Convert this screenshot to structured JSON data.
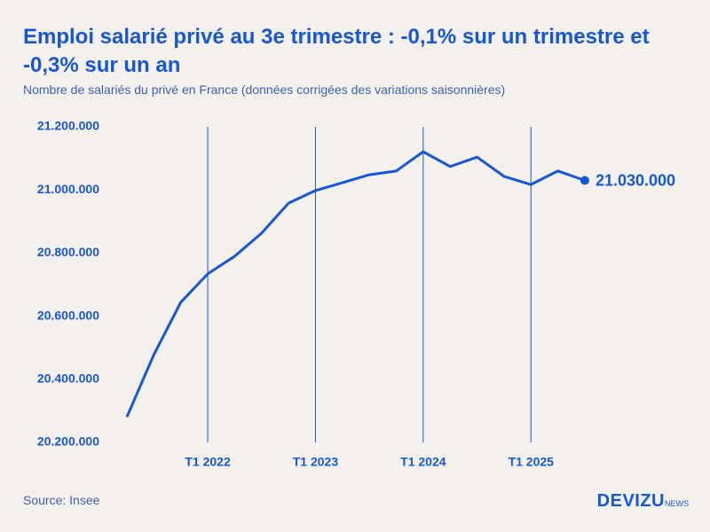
{
  "chart_data": {
    "type": "line",
    "title": "Emploi salarié privé au 3e trimestre : -0,1% sur un trimestre et -0,3% sur un an",
    "subtitle": "Nombre de salariés du privé en France (données corrigées des variations saisonnières)",
    "source": "Source: Insee",
    "brand": "DEVIZU",
    "brand_suffix": "NEWS",
    "categories": [
      null,
      null,
      null,
      "T1 2022",
      null,
      null,
      null,
      "T1 2023",
      null,
      null,
      null,
      "T1 2024",
      null,
      null,
      null,
      "T1 2025",
      null,
      null
    ],
    "series": [
      {
        "name": "Nombre de salariés du privé",
        "color": "#1656dc",
        "values": [
          20281000,
          20478000,
          20644000,
          20734000,
          20790000,
          20863000,
          20958000,
          20998000,
          21023000,
          21048000,
          21060000,
          21121000,
          21074000,
          21104000,
          21043000,
          21017000,
          21060000,
          21030000
        ],
        "value_labels": [
          null,
          null,
          null,
          null,
          null,
          null,
          null,
          null,
          null,
          null,
          null,
          null,
          null,
          null,
          null,
          null,
          null,
          "21.030.000"
        ]
      }
    ],
    "ylim": [
      20200000,
      21200000
    ],
    "yticks": [
      {
        "value": 20200000,
        "label": "20.200.000"
      },
      {
        "value": 20400000,
        "label": "20.400.000"
      },
      {
        "value": 20600000,
        "label": "20.600.000"
      },
      {
        "value": 20800000,
        "label": "20.800.000"
      },
      {
        "value": 21000000,
        "label": "21.000.000"
      },
      {
        "value": 21200000,
        "label": "21.200.000"
      }
    ],
    "x_grid": true
  }
}
